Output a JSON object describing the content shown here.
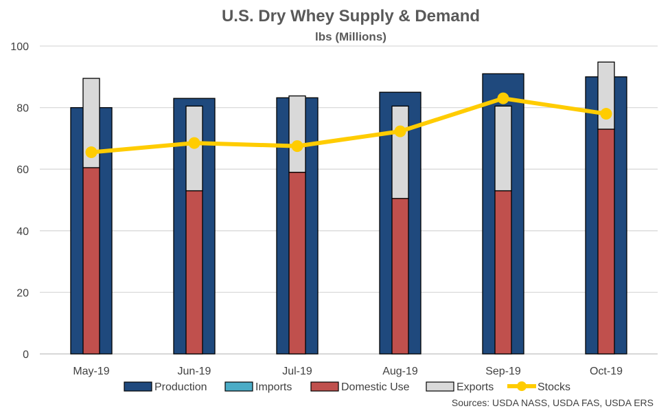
{
  "chart_data": {
    "type": "bar",
    "title": "U.S. Dry Whey Supply & Demand",
    "subtitle": "lbs (Millions)",
    "categories": [
      "May-19",
      "Jun-19",
      "Jul-19",
      "Aug-19",
      "Sep-19",
      "Oct-19"
    ],
    "ylim": [
      0,
      100
    ],
    "yticks": [
      0,
      20,
      40,
      60,
      80,
      100
    ],
    "grid": true,
    "legend_position": "bottom",
    "series": [
      {
        "name": "Production",
        "type": "bar",
        "color": "#1F497D",
        "values": [
          80,
          83,
          83.2,
          85,
          91,
          90
        ]
      },
      {
        "name": "Imports",
        "type": "stacked-bar",
        "color": "#4BACC6",
        "values": [
          0,
          0,
          0,
          0,
          0,
          0
        ]
      },
      {
        "name": "Domestic Use",
        "type": "stacked-bar",
        "color": "#C0504D",
        "values": [
          60.5,
          53,
          59,
          50.5,
          53,
          73
        ]
      },
      {
        "name": "Exports",
        "type": "stacked-bar",
        "color": "#D9D9D9",
        "values": [
          29,
          27.5,
          24.8,
          30,
          27.5,
          21.8
        ]
      },
      {
        "name": "Stocks",
        "type": "line",
        "color": "#FFCC00",
        "values": [
          65.5,
          68.5,
          67.5,
          72.3,
          83,
          78
        ]
      }
    ],
    "source": "Sources: USDA NASS, USDA FAS, USDA ERS"
  }
}
